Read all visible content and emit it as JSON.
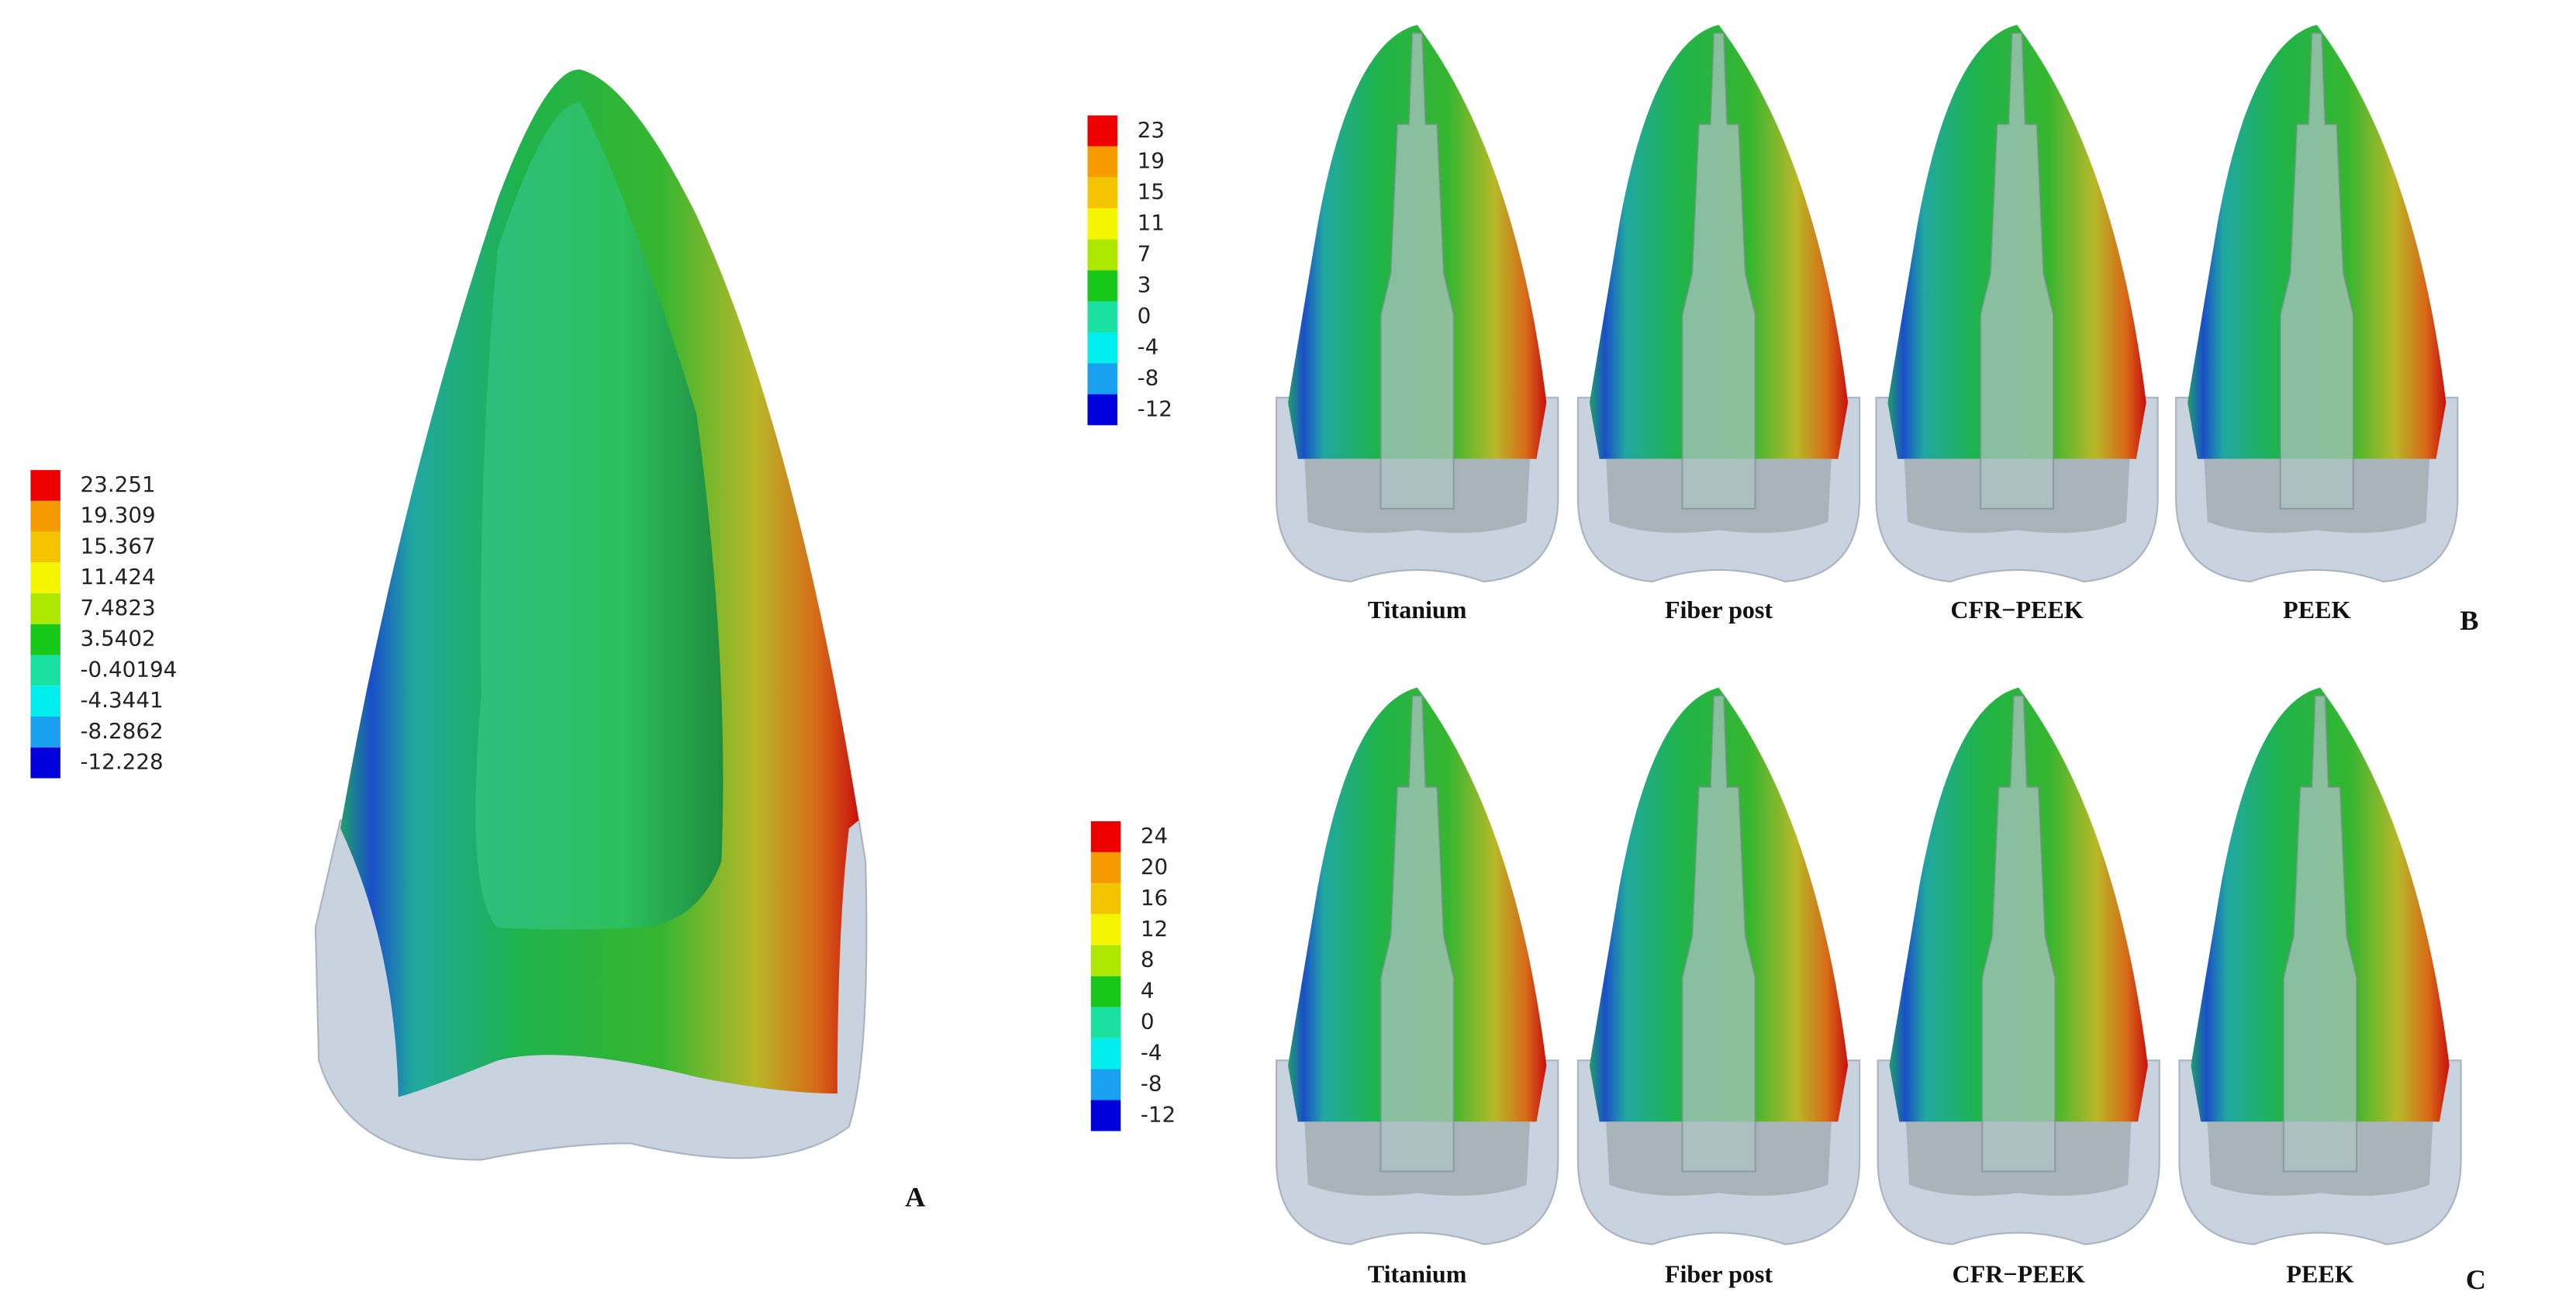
{
  "panels": [
    {
      "label": "A",
      "legend": [
        "23.251",
        "19.309",
        "15.367",
        "11.424",
        "7.4823",
        "3.5402",
        "-0.40194",
        "-4.3441",
        "-8.2862",
        "-12.228"
      ]
    },
    {
      "label": "B",
      "legend": [
        "23",
        "19",
        "15",
        "11",
        "7",
        "3",
        "0",
        "-4",
        "-8",
        "-12"
      ],
      "items": [
        "Titanium",
        "Fiber post",
        "CFR−PEEK",
        "PEEK"
      ]
    },
    {
      "label": "C",
      "legend": [
        "24",
        "20",
        "16",
        "12",
        "8",
        "4",
        "0",
        "-4",
        "-8",
        "-12"
      ],
      "items": [
        "Titanium",
        "Fiber post",
        "CFR−PEEK",
        "PEEK"
      ]
    }
  ]
}
